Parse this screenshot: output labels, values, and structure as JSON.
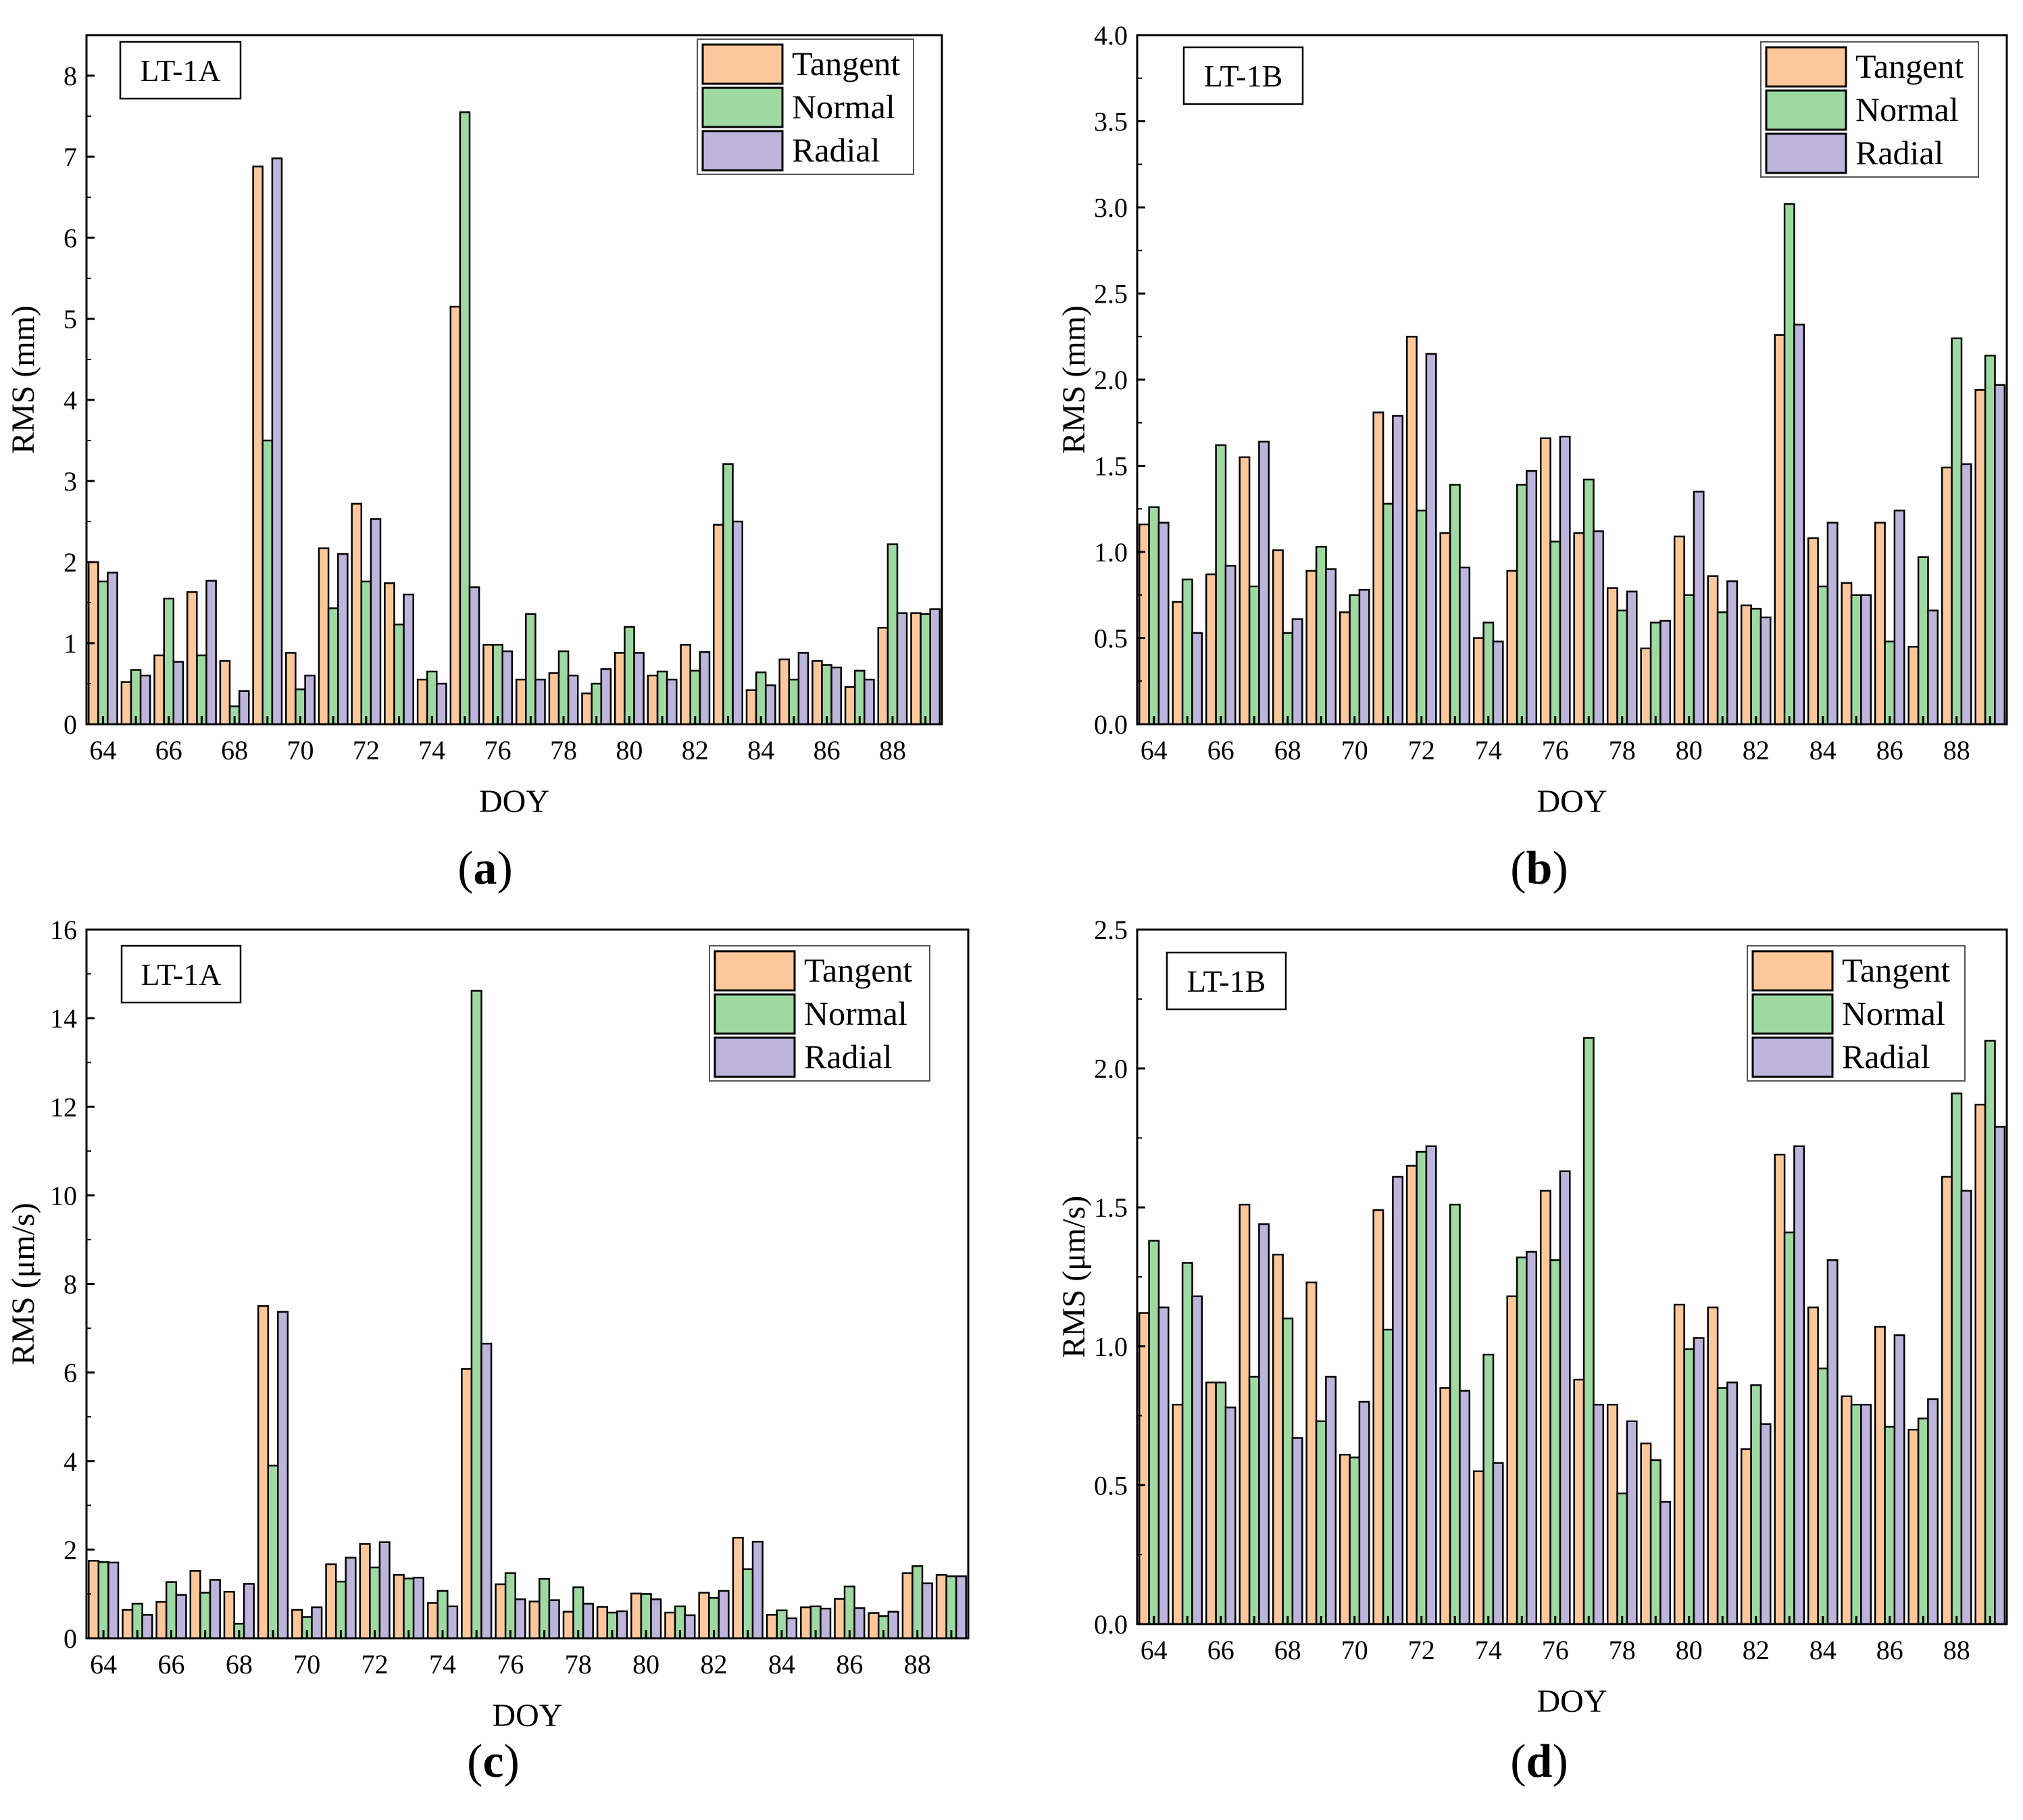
{
  "series_names": [
    "Tangent",
    "Normal",
    "Radial"
  ],
  "colors": {
    "Tangent": "#FCC89B",
    "Normal": "#9ED9A1",
    "Radial": "#BDB5DB",
    "outline": "#000000"
  },
  "chart_data": [
    {
      "panel": "(a)",
      "type": "bar",
      "satellite": "LT-1A",
      "xlabel": "DOY",
      "ylabel": "RMS (mm)",
      "ylim": [
        0,
        8.5
      ],
      "yticks": [
        "0",
        "1",
        "2",
        "3",
        "4",
        "5",
        "6",
        "7",
        "8"
      ],
      "xticks": [
        "64",
        "66",
        "68",
        "70",
        "72",
        "74",
        "76",
        "78",
        "80",
        "82",
        "84",
        "86",
        "88"
      ],
      "legend": "top-right",
      "categories": [
        64,
        65,
        66,
        67,
        68,
        69,
        70,
        71,
        72,
        73,
        74,
        75,
        76,
        77,
        78,
        79,
        80,
        81,
        82,
        83,
        84,
        85,
        86,
        87,
        88,
        89
      ],
      "series": [
        {
          "name": "Tangent",
          "values": [
            2.0,
            0.52,
            0.85,
            1.63,
            0.78,
            6.88,
            0.88,
            2.17,
            2.72,
            1.74,
            0.55,
            5.15,
            0.98,
            0.55,
            0.63,
            0.38,
            0.88,
            0.6,
            0.98,
            2.46,
            0.42,
            0.8,
            0.78,
            0.46,
            1.19,
            1.37
          ]
        },
        {
          "name": "Normal",
          "values": [
            1.76,
            0.67,
            1.55,
            0.85,
            0.22,
            3.5,
            0.43,
            1.43,
            1.76,
            1.23,
            0.65,
            7.55,
            0.98,
            1.36,
            0.9,
            0.5,
            1.2,
            0.65,
            0.66,
            3.21,
            0.64,
            0.55,
            0.73,
            0.66,
            2.22,
            1.36
          ]
        },
        {
          "name": "Radial",
          "values": [
            1.87,
            0.6,
            0.77,
            1.77,
            0.41,
            6.98,
            0.6,
            2.1,
            2.53,
            1.6,
            0.5,
            1.69,
            0.9,
            0.55,
            0.6,
            0.68,
            0.88,
            0.55,
            0.89,
            2.5,
            0.48,
            0.88,
            0.7,
            0.55,
            1.37,
            1.42
          ]
        }
      ]
    },
    {
      "panel": "(b)",
      "type": "bar",
      "satellite": "LT-1B",
      "xlabel": "DOY",
      "ylabel": "RMS (mm)",
      "ylim": [
        0,
        4.0
      ],
      "yticks": [
        "0.0",
        "0.5",
        "1.0",
        "1.5",
        "2.0",
        "2.5",
        "3.0",
        "3.5",
        "4.0"
      ],
      "xticks": [
        "64",
        "66",
        "68",
        "70",
        "72",
        "74",
        "76",
        "78",
        "80",
        "82",
        "84",
        "86",
        "88"
      ],
      "legend": "top-right",
      "categories": [
        64,
        65,
        66,
        67,
        68,
        69,
        70,
        71,
        72,
        73,
        74,
        75,
        76,
        77,
        78,
        79,
        80,
        81,
        82,
        83,
        84,
        85,
        86,
        87,
        88,
        89
      ],
      "series": [
        {
          "name": "Tangent",
          "values": [
            1.16,
            0.71,
            0.87,
            1.55,
            1.01,
            0.89,
            0.65,
            1.81,
            2.25,
            1.11,
            0.5,
            0.89,
            1.66,
            1.11,
            0.79,
            0.44,
            1.09,
            0.86,
            0.69,
            2.26,
            1.08,
            0.82,
            1.17,
            0.45,
            1.49,
            1.94
          ]
        },
        {
          "name": "Normal",
          "values": [
            1.26,
            0.84,
            1.62,
            0.8,
            0.53,
            1.03,
            0.75,
            1.28,
            1.24,
            1.39,
            0.59,
            1.39,
            1.06,
            1.42,
            0.66,
            0.59,
            0.75,
            0.65,
            0.67,
            3.02,
            0.8,
            0.75,
            0.48,
            0.97,
            2.24,
            2.14
          ]
        },
        {
          "name": "Radial",
          "values": [
            1.17,
            0.53,
            0.92,
            1.64,
            0.61,
            0.9,
            0.78,
            1.79,
            2.15,
            0.91,
            0.48,
            1.47,
            1.67,
            1.12,
            0.77,
            0.6,
            1.35,
            0.83,
            0.62,
            2.32,
            1.17,
            0.75,
            1.24,
            0.66,
            1.51,
            1.97
          ]
        }
      ]
    },
    {
      "panel": "(c)",
      "type": "bar",
      "satellite": "LT-1A",
      "xlabel": "DOY",
      "ylabel": "RMS (μm/s)",
      "ylim": [
        0,
        16
      ],
      "yticks": [
        "0",
        "2",
        "4",
        "6",
        "8",
        "10",
        "12",
        "14",
        "16"
      ],
      "xticks": [
        "64",
        "66",
        "68",
        "70",
        "72",
        "74",
        "76",
        "78",
        "80",
        "82",
        "84",
        "86",
        "88"
      ],
      "legend": "top-right",
      "categories": [
        64,
        65,
        66,
        67,
        68,
        69,
        70,
        71,
        72,
        73,
        74,
        75,
        76,
        77,
        78,
        79,
        80,
        81,
        82,
        83,
        84,
        85,
        86,
        87,
        88,
        89
      ],
      "series": [
        {
          "name": "Tangent",
          "values": [
            1.75,
            0.64,
            0.82,
            1.52,
            1.05,
            7.5,
            0.64,
            1.67,
            2.13,
            1.43,
            0.8,
            6.08,
            1.22,
            0.83,
            0.6,
            0.71,
            1.01,
            0.58,
            1.03,
            2.27,
            0.53,
            0.7,
            0.89,
            0.57,
            1.47,
            1.43
          ]
        },
        {
          "name": "Normal",
          "values": [
            1.72,
            0.78,
            1.27,
            1.03,
            0.33,
            3.9,
            0.48,
            1.28,
            1.6,
            1.35,
            1.07,
            14.62,
            1.47,
            1.34,
            1.15,
            0.58,
            1.0,
            0.72,
            0.91,
            1.56,
            0.63,
            0.72,
            1.17,
            0.5,
            1.63,
            1.4
          ]
        },
        {
          "name": "Radial",
          "values": [
            1.71,
            0.53,
            0.98,
            1.32,
            1.23,
            7.37,
            0.7,
            1.82,
            2.17,
            1.37,
            0.72,
            6.65,
            0.88,
            0.86,
            0.78,
            0.61,
            0.88,
            0.52,
            1.07,
            2.18,
            0.45,
            0.67,
            0.68,
            0.6,
            1.24,
            1.4
          ]
        }
      ]
    },
    {
      "panel": "(d)",
      "type": "bar",
      "satellite": "LT-1B",
      "xlabel": "DOY",
      "ylabel": "RMS (μm/s)",
      "ylim": [
        0,
        2.5
      ],
      "yticks": [
        "0.0",
        "0.5",
        "1.0",
        "1.5",
        "2.0",
        "2.5"
      ],
      "xticks": [
        "64",
        "66",
        "68",
        "70",
        "72",
        "74",
        "76",
        "78",
        "80",
        "82",
        "84",
        "86",
        "88"
      ],
      "legend": "top-right",
      "categories": [
        64,
        65,
        66,
        67,
        68,
        69,
        70,
        71,
        72,
        73,
        74,
        75,
        76,
        77,
        78,
        79,
        80,
        81,
        82,
        83,
        84,
        85,
        86,
        87,
        88,
        89
      ],
      "series": [
        {
          "name": "Tangent",
          "values": [
            1.12,
            0.79,
            0.87,
            1.51,
            1.33,
            1.23,
            0.61,
            1.49,
            1.65,
            0.85,
            0.55,
            1.18,
            1.56,
            0.88,
            0.79,
            0.65,
            1.15,
            1.14,
            0.63,
            1.69,
            1.14,
            0.82,
            1.07,
            0.7,
            1.61,
            1.87
          ]
        },
        {
          "name": "Normal",
          "values": [
            1.38,
            1.3,
            0.87,
            0.89,
            1.1,
            0.73,
            0.6,
            1.06,
            1.7,
            1.51,
            0.97,
            1.32,
            1.31,
            2.11,
            0.47,
            0.59,
            0.99,
            0.85,
            0.86,
            1.41,
            0.92,
            0.79,
            0.71,
            0.74,
            1.91,
            2.1
          ]
        },
        {
          "name": "Radial",
          "values": [
            1.14,
            1.18,
            0.78,
            1.44,
            0.67,
            0.89,
            0.8,
            1.61,
            1.72,
            0.84,
            0.58,
            1.34,
            1.63,
            0.79,
            0.73,
            0.44,
            1.03,
            0.87,
            0.72,
            1.72,
            1.31,
            0.79,
            1.04,
            0.81,
            1.56,
            1.79
          ]
        }
      ]
    }
  ]
}
